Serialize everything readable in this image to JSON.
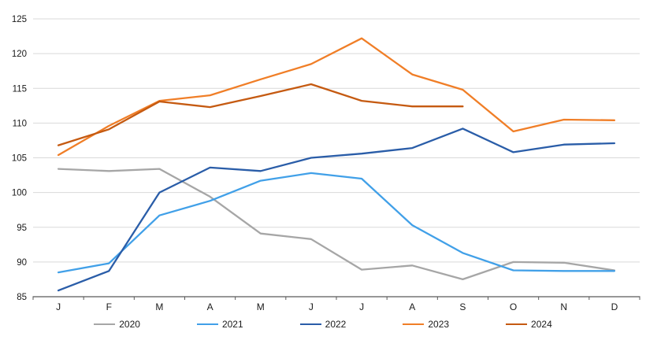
{
  "chart_data": {
    "type": "line",
    "title": "",
    "xlabel": "",
    "ylabel": "",
    "categories": [
      "J",
      "F",
      "M",
      "A",
      "M",
      "J",
      "J",
      "A",
      "S",
      "O",
      "N",
      "D"
    ],
    "series": [
      {
        "name": "2020",
        "color": "#A6A6A6",
        "values": [
          103.4,
          103.1,
          103.4,
          99.4,
          94.1,
          93.3,
          88.9,
          89.5,
          87.5,
          90.0,
          89.9,
          88.8
        ]
      },
      {
        "name": "2021",
        "color": "#41A0E8",
        "values": [
          88.5,
          89.8,
          96.7,
          98.8,
          101.7,
          102.8,
          102.0,
          95.3,
          91.3,
          88.8,
          88.7,
          88.7
        ]
      },
      {
        "name": "2022",
        "color": "#2A5DA8",
        "values": [
          85.9,
          88.7,
          100.0,
          103.6,
          103.1,
          105.0,
          105.6,
          106.4,
          109.2,
          105.8,
          106.9,
          107.1
        ]
      },
      {
        "name": "2023",
        "color": "#F07E27",
        "values": [
          105.4,
          109.6,
          113.2,
          114.0,
          116.3,
          118.5,
          122.2,
          117.0,
          114.8,
          108.8,
          110.5,
          110.4
        ]
      },
      {
        "name": "2024",
        "color": "#C55A11",
        "values": [
          106.8,
          109.1,
          113.1,
          112.3,
          113.9,
          115.6,
          113.2,
          112.4,
          112.4,
          null,
          null,
          null
        ]
      }
    ],
    "ylim": [
      85,
      125
    ],
    "ytick_step": 5,
    "yticks": [
      85,
      90,
      95,
      100,
      105,
      110,
      115,
      120,
      125
    ],
    "grid": true,
    "legend_position": "bottom"
  },
  "colors": {
    "background": "#ffffff",
    "gridline": "#D9D9D9",
    "axis": "#595959",
    "text": "#1a1a1a"
  }
}
